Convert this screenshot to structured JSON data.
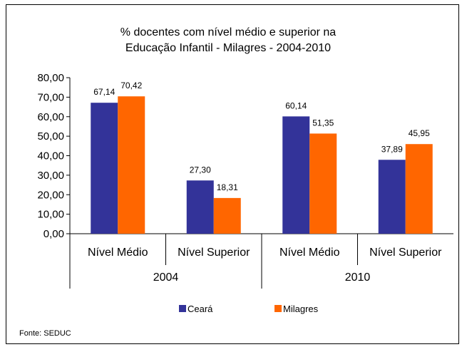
{
  "chart_data": {
    "type": "bar",
    "title_lines": [
      "% docentes com nível médio e superior na",
      "Educação Infantil - Milagres - 2004-2010"
    ],
    "groups": [
      {
        "label": "2004",
        "categories": [
          "Nível Médio",
          "Nível Superior"
        ]
      },
      {
        "label": "2010",
        "categories": [
          "Nível Médio",
          "Nível Superior"
        ]
      }
    ],
    "series": [
      {
        "name": "Ceará",
        "color": "#333399",
        "values": [
          67.14,
          27.3,
          60.14,
          37.89
        ],
        "labels": [
          "67,14",
          "27,30",
          "60,14",
          "37,89"
        ]
      },
      {
        "name": "Milagres",
        "color": "#FF6600",
        "values": [
          70.42,
          18.31,
          51.35,
          45.95
        ],
        "labels": [
          "70,42",
          "18,31",
          "51,35",
          "45,95"
        ]
      }
    ],
    "ylim": [
      0,
      80
    ],
    "yticks": [
      "0,00",
      "10,00",
      "20,00",
      "30,00",
      "40,00",
      "50,00",
      "60,00",
      "70,00",
      "80,00"
    ],
    "legend_position": "bottom",
    "grid": false
  },
  "source": "Fonte: SEDUC"
}
